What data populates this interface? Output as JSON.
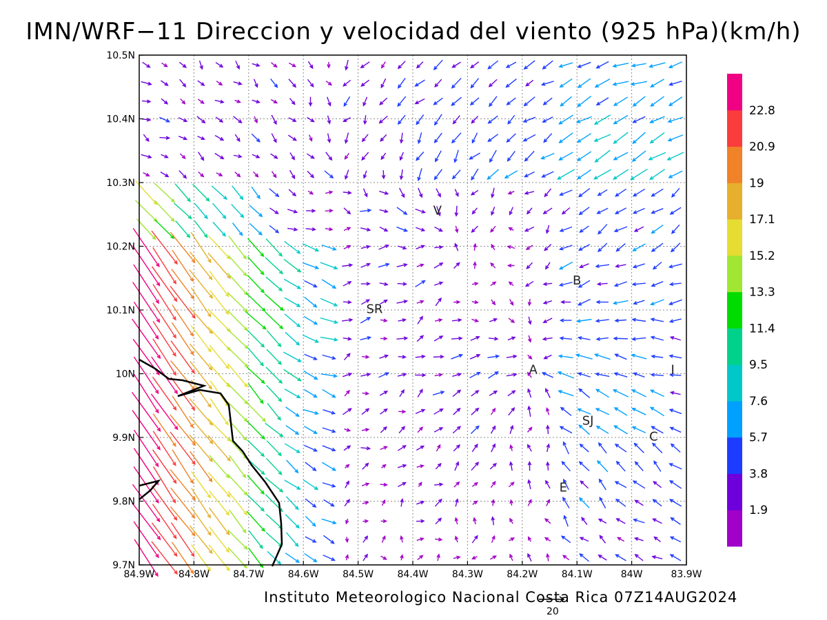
{
  "title": "IMN/WRF−11 Direccion y velocidad del viento (925 hPa)(km/h)",
  "footer": "Instituto Meteorologico Nacional Costa Rica 07Z14AUG2024",
  "reference_vector_label": "20",
  "axes": {
    "lon_ticks": [
      "84.9W",
      "84.8W",
      "84.7W",
      "84.6W",
      "84.5W",
      "84.4W",
      "84.3W",
      "84.2W",
      "84.1W",
      "84W",
      "83.9W"
    ],
    "lat_ticks": [
      "10.5N",
      "10.4N",
      "10.3N",
      "10.2N",
      "10.1N",
      "10N",
      "9.9N",
      "9.8N",
      "9.7N"
    ],
    "lon_range": [
      -84.9,
      -83.9
    ],
    "lat_range": [
      9.7,
      10.5
    ],
    "grid": true
  },
  "colorbar": {
    "colors": [
      "#a000c8",
      "#6e00dc",
      "#1e3cff",
      "#00a0ff",
      "#00c8c8",
      "#00d28c",
      "#00dc00",
      "#a0e632",
      "#e6dc32",
      "#e6af2d",
      "#f08228",
      "#fa3c3c",
      "#f00082"
    ],
    "labels": [
      "1.9",
      "3.8",
      "5.7",
      "7.6",
      "9.5",
      "11.4",
      "13.3",
      "15.2",
      "17.1",
      "19",
      "20.9",
      "22.8"
    ]
  },
  "places": [
    {
      "label": "V",
      "lon": -84.355,
      "lat": 10.25
    },
    {
      "label": "B",
      "lon": -84.1,
      "lat": 10.14
    },
    {
      "label": "SR",
      "lon": -84.47,
      "lat": 10.095
    },
    {
      "label": "A",
      "lon": -84.18,
      "lat": 10.0
    },
    {
      "label": "I",
      "lon": -83.925,
      "lat": 10.0
    },
    {
      "label": "SJ",
      "lon": -84.08,
      "lat": 9.92
    },
    {
      "label": "C",
      "lon": -83.96,
      "lat": 9.895
    },
    {
      "label": "E",
      "lon": -84.125,
      "lat": 9.815
    }
  ]
}
